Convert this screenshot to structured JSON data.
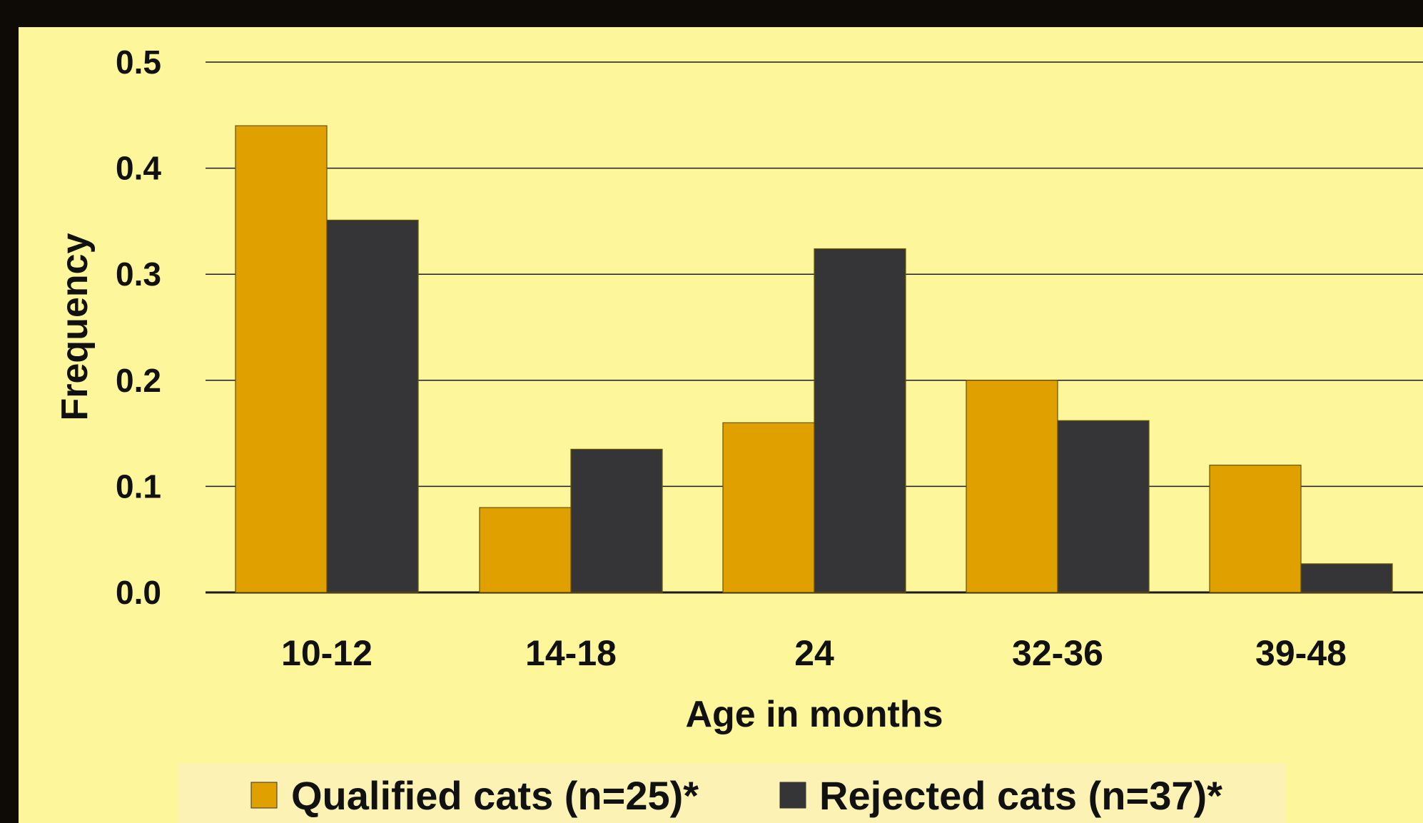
{
  "colors": {
    "outer_background": "#0e0a05",
    "plot_background": "#fdf69a",
    "legend_background": "#fbf2b4",
    "qualified": "#e0a000",
    "rejected": "#353437",
    "gridline": "#1a1a1a"
  },
  "chart_data": {
    "type": "bar",
    "categories": [
      "10-12",
      "14-18",
      "24",
      "32-36",
      "39-48"
    ],
    "series": [
      {
        "name": "Qualified cats (n=25)*",
        "values": [
          0.44,
          0.08,
          0.16,
          0.2,
          0.12
        ]
      },
      {
        "name": "Rejected cats (n=37)*",
        "values": [
          0.351,
          0.135,
          0.324,
          0.162,
          0.027
        ]
      }
    ],
    "title": "",
    "xlabel": "Age in months",
    "ylabel": "Frequency",
    "ylim": [
      0,
      0.5
    ],
    "yticks": [
      "0.0",
      "0.1",
      "0.2",
      "0.3",
      "0.4",
      "0.5"
    ],
    "grid": true,
    "legend_position": "bottom"
  }
}
